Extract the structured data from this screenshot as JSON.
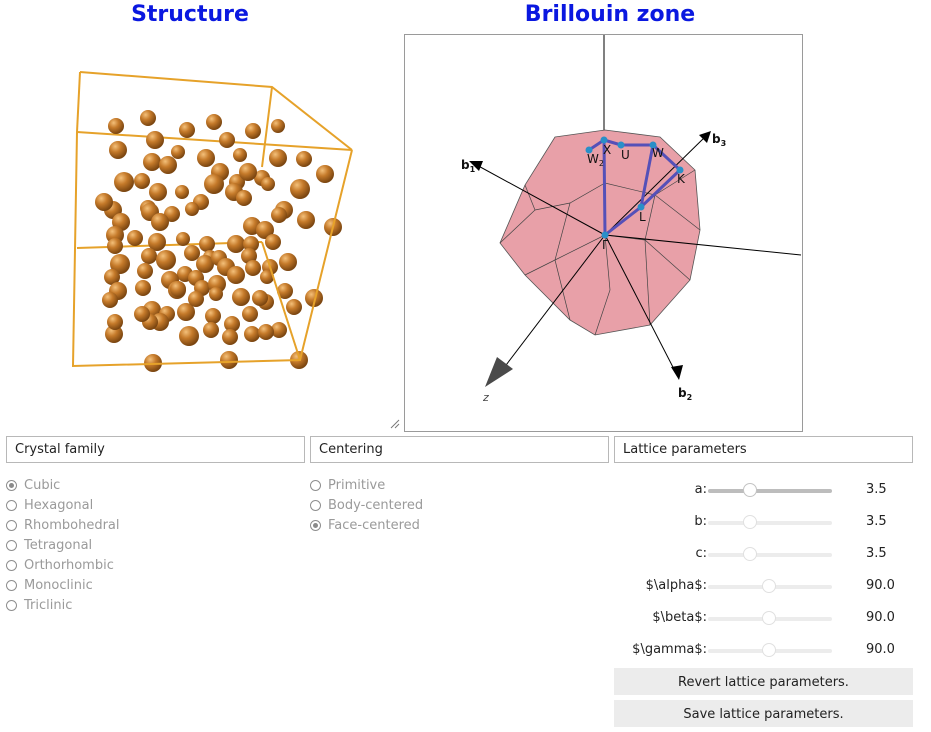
{
  "titles": {
    "structure": "Structure",
    "brillouin": "Brillouin zone"
  },
  "colors": {
    "title": "#0a18e0",
    "atom": "#c57a2a",
    "cell_edge": "#e6a22a",
    "bz_fill": "#e8a0a8",
    "path": "#5550b8",
    "kpoint": "#2a8fc8"
  },
  "bz_labels": {
    "b1": "b",
    "b1_sub": "1",
    "b2": "b",
    "b2_sub": "2",
    "b3": "b",
    "b3_sub": "3",
    "z": "z",
    "X": "X",
    "U": "U",
    "W": "W",
    "W2": "W",
    "W2_sub": "2",
    "K": "K",
    "L": "L",
    "Gamma": "Γ"
  },
  "crystal_family": {
    "header": "Crystal family",
    "options": [
      {
        "label": "Cubic",
        "selected": true
      },
      {
        "label": "Hexagonal",
        "selected": false
      },
      {
        "label": "Rhombohedral",
        "selected": false
      },
      {
        "label": "Tetragonal",
        "selected": false
      },
      {
        "label": "Orthorhombic",
        "selected": false
      },
      {
        "label": "Monoclinic",
        "selected": false
      },
      {
        "label": "Triclinic",
        "selected": false
      }
    ]
  },
  "centering": {
    "header": "Centering",
    "options": [
      {
        "label": "Primitive",
        "selected": false
      },
      {
        "label": "Body-centered",
        "selected": false
      },
      {
        "label": "Face-centered",
        "selected": true
      }
    ]
  },
  "lattice": {
    "header": "Lattice parameters",
    "params": [
      {
        "label": "a:",
        "value": "3.5",
        "enabled": true
      },
      {
        "label": "b:",
        "value": "3.5",
        "enabled": false
      },
      {
        "label": "c:",
        "value": "3.5",
        "enabled": false
      },
      {
        "label": "$\\alpha$:",
        "value": "90.0",
        "enabled": false
      },
      {
        "label": "$\\beta$:",
        "value": "90.0",
        "enabled": false
      },
      {
        "label": "$\\gamma$:",
        "value": "90.0",
        "enabled": false
      }
    ],
    "revert_label": "Revert lattice parameters.",
    "save_label": "Save lattice parameters."
  }
}
